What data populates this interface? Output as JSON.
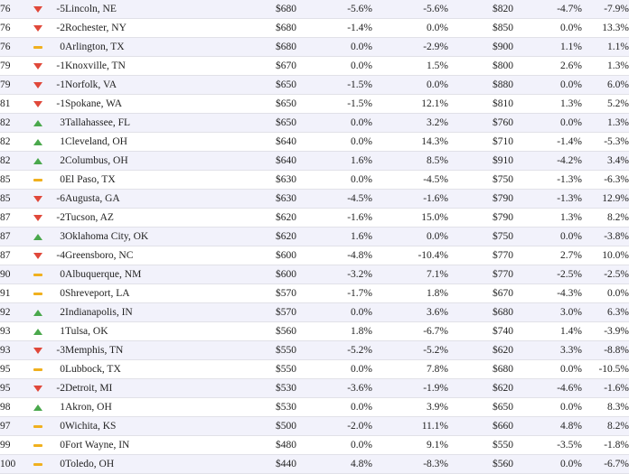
{
  "colors": {
    "up": "#4aa84c",
    "down": "#e0483a",
    "same": "#f0b01e",
    "row_alt": "#f2f2fb"
  },
  "rows": [
    {
      "rank": "76",
      "dir": "down",
      "change": "-5",
      "city": "Lincoln, NE",
      "r1": "$680",
      "p1": "-5.6%",
      "p2": "-5.6%",
      "r2": "$820",
      "p3": "-4.7%",
      "p4": "-7.9%"
    },
    {
      "rank": "76",
      "dir": "down",
      "change": "-2",
      "city": "Rochester, NY",
      "r1": "$680",
      "p1": "-1.4%",
      "p2": "0.0%",
      "r2": "$850",
      "p3": "0.0%",
      "p4": "13.3%"
    },
    {
      "rank": "76",
      "dir": "same",
      "change": "0",
      "city": "Arlington, TX",
      "r1": "$680",
      "p1": "0.0%",
      "p2": "-2.9%",
      "r2": "$900",
      "p3": "1.1%",
      "p4": "1.1%"
    },
    {
      "rank": "79",
      "dir": "down",
      "change": "-1",
      "city": "Knoxville, TN",
      "r1": "$670",
      "p1": "0.0%",
      "p2": "1.5%",
      "r2": "$800",
      "p3": "2.6%",
      "p4": "1.3%"
    },
    {
      "rank": "79",
      "dir": "down",
      "change": "-1",
      "city": "Norfolk, VA",
      "r1": "$650",
      "p1": "-1.5%",
      "p2": "0.0%",
      "r2": "$880",
      "p3": "0.0%",
      "p4": "6.0%"
    },
    {
      "rank": "81",
      "dir": "down",
      "change": "-1",
      "city": "Spokane, WA",
      "r1": "$650",
      "p1": "-1.5%",
      "p2": "12.1%",
      "r2": "$810",
      "p3": "1.3%",
      "p4": "5.2%"
    },
    {
      "rank": "82",
      "dir": "up",
      "change": "3",
      "city": "Tallahassee, FL",
      "r1": "$650",
      "p1": "0.0%",
      "p2": "3.2%",
      "r2": "$760",
      "p3": "0.0%",
      "p4": "1.3%"
    },
    {
      "rank": "82",
      "dir": "up",
      "change": "1",
      "city": "Cleveland, OH",
      "r1": "$640",
      "p1": "0.0%",
      "p2": "14.3%",
      "r2": "$710",
      "p3": "-1.4%",
      "p4": "-5.3%"
    },
    {
      "rank": "82",
      "dir": "up",
      "change": "2",
      "city": "Columbus, OH",
      "r1": "$640",
      "p1": "1.6%",
      "p2": "8.5%",
      "r2": "$910",
      "p3": "-4.2%",
      "p4": "3.4%"
    },
    {
      "rank": "85",
      "dir": "same",
      "change": "0",
      "city": "El Paso, TX",
      "r1": "$630",
      "p1": "0.0%",
      "p2": "-4.5%",
      "r2": "$750",
      "p3": "-1.3%",
      "p4": "-6.3%"
    },
    {
      "rank": "85",
      "dir": "down",
      "change": "-6",
      "city": "Augusta, GA",
      "r1": "$630",
      "p1": "-4.5%",
      "p2": "-1.6%",
      "r2": "$790",
      "p3": "-1.3%",
      "p4": "12.9%"
    },
    {
      "rank": "87",
      "dir": "down",
      "change": "-2",
      "city": "Tucson, AZ",
      "r1": "$620",
      "p1": "-1.6%",
      "p2": "15.0%",
      "r2": "$790",
      "p3": "1.3%",
      "p4": "8.2%"
    },
    {
      "rank": "87",
      "dir": "up",
      "change": "3",
      "city": "Oklahoma City, OK",
      "r1": "$620",
      "p1": "1.6%",
      "p2": "0.0%",
      "r2": "$750",
      "p3": "0.0%",
      "p4": "-3.8%"
    },
    {
      "rank": "87",
      "dir": "down",
      "change": "-4",
      "city": "Greensboro, NC",
      "r1": "$600",
      "p1": "-4.8%",
      "p2": "-10.4%",
      "r2": "$770",
      "p3": "2.7%",
      "p4": "10.0%"
    },
    {
      "rank": "90",
      "dir": "same",
      "change": "0",
      "city": "Albuquerque, NM",
      "r1": "$600",
      "p1": "-3.2%",
      "p2": "7.1%",
      "r2": "$770",
      "p3": "-2.5%",
      "p4": "-2.5%"
    },
    {
      "rank": "91",
      "dir": "same",
      "change": "0",
      "city": "Shreveport, LA",
      "r1": "$570",
      "p1": "-1.7%",
      "p2": "1.8%",
      "r2": "$670",
      "p3": "-4.3%",
      "p4": "0.0%"
    },
    {
      "rank": "92",
      "dir": "up",
      "change": "2",
      "city": "Indianapolis, IN",
      "r1": "$570",
      "p1": "0.0%",
      "p2": "3.6%",
      "r2": "$680",
      "p3": "3.0%",
      "p4": "6.3%"
    },
    {
      "rank": "93",
      "dir": "up",
      "change": "1",
      "city": "Tulsa, OK",
      "r1": "$560",
      "p1": "1.8%",
      "p2": "-6.7%",
      "r2": "$740",
      "p3": "1.4%",
      "p4": "-3.9%"
    },
    {
      "rank": "93",
      "dir": "down",
      "change": "-3",
      "city": "Memphis, TN",
      "r1": "$550",
      "p1": "-5.2%",
      "p2": "-5.2%",
      "r2": "$620",
      "p3": "3.3%",
      "p4": "-8.8%"
    },
    {
      "rank": "95",
      "dir": "same",
      "change": "0",
      "city": "Lubbock, TX",
      "r1": "$550",
      "p1": "0.0%",
      "p2": "7.8%",
      "r2": "$680",
      "p3": "0.0%",
      "p4": "-10.5%"
    },
    {
      "rank": "95",
      "dir": "down",
      "change": "-2",
      "city": "Detroit, MI",
      "r1": "$530",
      "p1": "-3.6%",
      "p2": "-1.9%",
      "r2": "$620",
      "p3": "-4.6%",
      "p4": "-1.6%"
    },
    {
      "rank": "98",
      "dir": "up",
      "change": "1",
      "city": "Akron, OH",
      "r1": "$530",
      "p1": "0.0%",
      "p2": "3.9%",
      "r2": "$650",
      "p3": "0.0%",
      "p4": "8.3%"
    },
    {
      "rank": "97",
      "dir": "same",
      "change": "0",
      "city": "Wichita, KS",
      "r1": "$500",
      "p1": "-2.0%",
      "p2": "11.1%",
      "r2": "$660",
      "p3": "4.8%",
      "p4": "8.2%"
    },
    {
      "rank": "99",
      "dir": "same",
      "change": "0",
      "city": "Fort Wayne, IN",
      "r1": "$480",
      "p1": "0.0%",
      "p2": "9.1%",
      "r2": "$550",
      "p3": "-3.5%",
      "p4": "-1.8%"
    },
    {
      "rank": "100",
      "dir": "same",
      "change": "0",
      "city": "Toledo, OH",
      "r1": "$440",
      "p1": "4.8%",
      "p2": "-8.3%",
      "r2": "$560",
      "p3": "0.0%",
      "p4": "-6.7%"
    }
  ]
}
